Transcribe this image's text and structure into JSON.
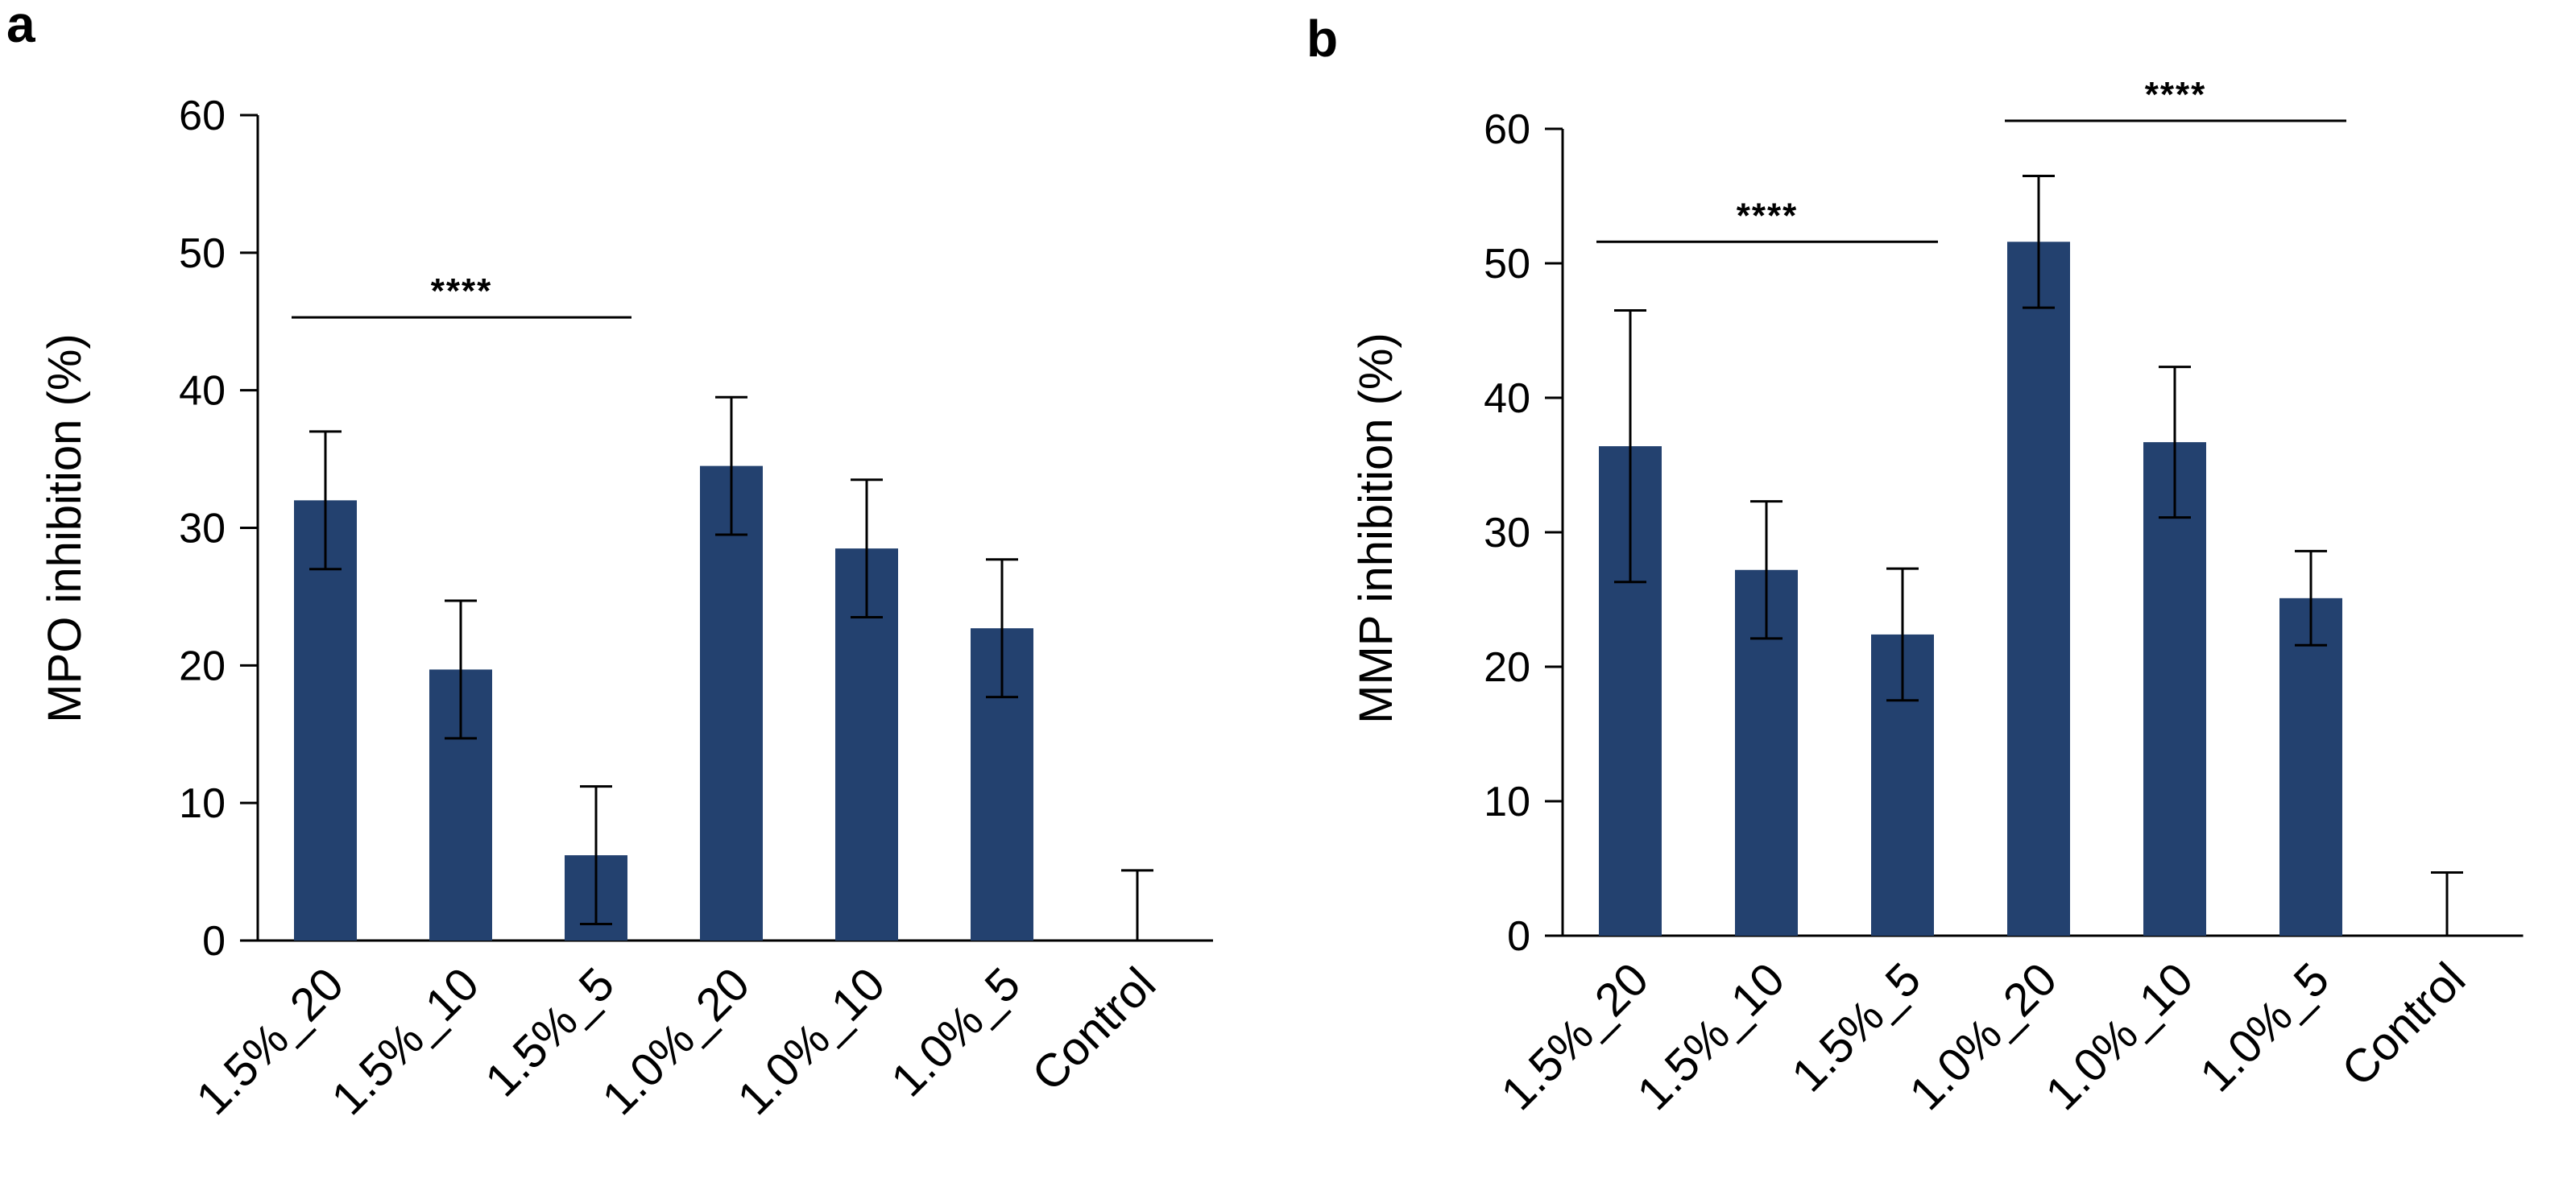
{
  "chart_data": [
    {
      "panel": "a",
      "type": "bar",
      "title": "",
      "xlabel": "",
      "ylabel": "MPO inhibition (%)",
      "ylim": [
        0,
        60
      ],
      "yticks": [
        0,
        10,
        20,
        30,
        40,
        50,
        60
      ],
      "grid": false,
      "bar_color": "#23416f",
      "categories": [
        "1.5%_20",
        "1.5%_10",
        "1.5%_5",
        "1.0%_20",
        "1.0%_10",
        "1.0%_5",
        "Control"
      ],
      "values": [
        32,
        19.7,
        6.2,
        34.5,
        28.5,
        22.7,
        0
      ],
      "errors": [
        5,
        5,
        5,
        5,
        5,
        5,
        5.1
      ],
      "significance": [
        {
          "text": "****",
          "from_category": 0,
          "to_category": 2,
          "y": 45.3
        }
      ]
    },
    {
      "panel": "b",
      "type": "bar",
      "title": "",
      "xlabel": "",
      "ylabel": "MMP inhibition (%)",
      "ylim": [
        0,
        60
      ],
      "yticks": [
        0,
        10,
        20,
        30,
        40,
        50,
        60
      ],
      "grid": false,
      "bar_color": "#23416f",
      "categories": [
        "1.5%_20",
        "1.5%_10",
        "1.5%_5",
        "1.0%_20",
        "1.0%_10",
        "1.0%_5",
        "Control"
      ],
      "values": [
        36.4,
        27.2,
        22.4,
        51.6,
        36.7,
        25.1,
        0
      ],
      "errors": [
        10.1,
        5.1,
        4.9,
        4.9,
        5.6,
        3.5,
        4.7
      ],
      "significance": [
        {
          "text": "****",
          "from_category": 0,
          "to_category": 2,
          "y": 51.6
        },
        {
          "text": "****",
          "from_category": 3,
          "to_category": 5,
          "y": 60.6
        }
      ]
    }
  ]
}
